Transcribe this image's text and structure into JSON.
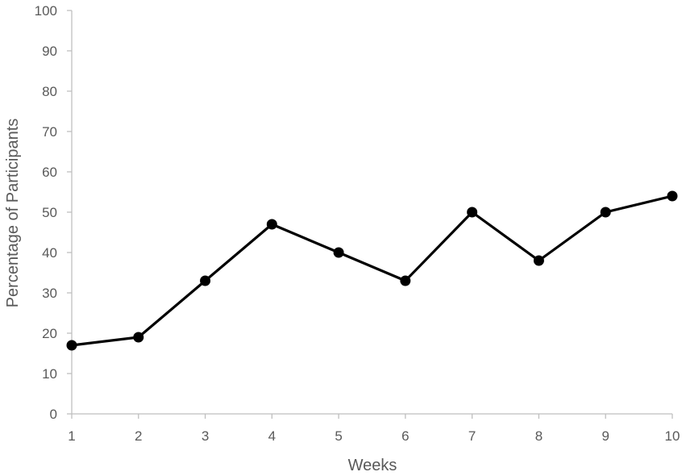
{
  "chart_data": {
    "type": "line",
    "title": "",
    "xlabel": "Weeks",
    "ylabel": "Percentage of Participants",
    "x": [
      1,
      2,
      3,
      4,
      5,
      6,
      7,
      8,
      9,
      10
    ],
    "series": [
      {
        "values": [
          17,
          19,
          33,
          47,
          40,
          33,
          50,
          38,
          50,
          54
        ]
      }
    ],
    "xlim": [
      1,
      10
    ],
    "ylim": [
      0,
      100
    ],
    "yticks": [
      0,
      10,
      20,
      30,
      40,
      50,
      60,
      70,
      80,
      90,
      100
    ],
    "xticks": [
      1,
      2,
      3,
      4,
      5,
      6,
      7,
      8,
      9,
      10
    ],
    "grid": false,
    "legend": "none",
    "markers": "filled-circle",
    "colors": {
      "line": "#000000",
      "marker": "#000000",
      "axis": "#bfbfbf",
      "text": "#595959"
    }
  }
}
